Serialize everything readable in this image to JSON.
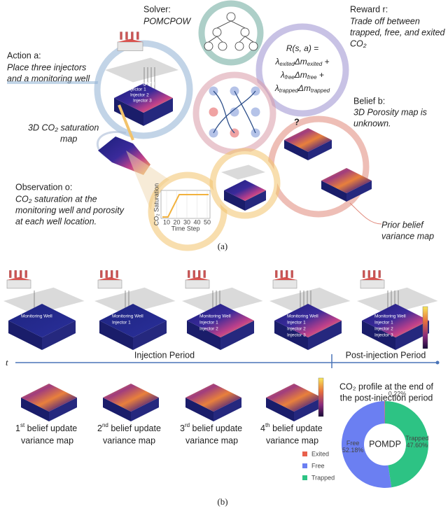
{
  "figure_a": {
    "solver": {
      "label": "Solver:",
      "name": "POMCPOW"
    },
    "reward": {
      "label": "Reward r:",
      "lines": [
        "Trade off between",
        "trapped, free, and exited",
        "CO₂"
      ]
    },
    "action": {
      "label": "Action a:",
      "lines": [
        "Place three injectors",
        "and a monitoring well"
      ]
    },
    "saturation_map": {
      "lines": [
        "3D CO₂ saturation",
        "map"
      ]
    },
    "belief": {
      "label": "Belief b:",
      "lines": [
        "3D Porosity map is",
        "unknown."
      ]
    },
    "question": "?",
    "formula": {
      "lines": [
        [
          "R(s, a) ="
        ],
        [
          "λ",
          "exited",
          "Δm",
          "exited",
          " +"
        ],
        [
          "λ",
          "free",
          "Δm",
          "free",
          " +"
        ],
        [
          "λ",
          "trapped",
          "Δm",
          "trapped"
        ]
      ]
    },
    "well_labels": [
      "Monitoring Well",
      "Injector 1",
      "Injector 2",
      "Injector 3"
    ],
    "observation": {
      "label": "Observation o:",
      "lines": [
        "CO₂ saturation at the",
        "monitoring well and porosity",
        "at each well location."
      ]
    },
    "mini_chart": {
      "xlabel": "Time Step",
      "ylabel": "CO₂ Saturation",
      "xticks": [
        10,
        20,
        30,
        40,
        50
      ]
    },
    "prior": {
      "lines": [
        "Prior belief",
        "variance map"
      ]
    },
    "caption": "(a)"
  },
  "figure_b": {
    "panels": [
      [
        "Monitoring Well"
      ],
      [
        "Monitoring Well",
        "Injector 1"
      ],
      [
        "Monitoring Well",
        "Injector 1",
        "Injector 2"
      ],
      [
        "Monitoring Well",
        "Injector 1",
        "Injector 2",
        "Injector 3"
      ],
      [
        "Monitoring Well",
        "Injector 1",
        "Injector 2",
        "Injector 3"
      ]
    ],
    "time_axis": "t",
    "injection": "Injection Period",
    "post": "Post-injection Period",
    "belief_updates": [
      {
        "ordinal": "1",
        "suffix": "st",
        "line1": " belief update",
        "line2": "variance map"
      },
      {
        "ordinal": "2",
        "suffix": "nd",
        "line1": " belief update",
        "line2": "variance map"
      },
      {
        "ordinal": "3",
        "suffix": "rd",
        "line1": " belief update",
        "line2": "variance map"
      },
      {
        "ordinal": "4",
        "suffix": "th",
        "line1": " belief update",
        "line2": "variance map"
      }
    ],
    "donut": {
      "title": [
        "CO₂ profile at the end of",
        "the post-injection period"
      ],
      "center": "POMDP",
      "slices": [
        {
          "name": "Exited",
          "value": 0.22,
          "label": "0.22%",
          "color": "#e8604c"
        },
        {
          "name": "Free",
          "value": 52.18,
          "label": "52.18%",
          "color": "#6b7ff2"
        },
        {
          "name": "Trapped",
          "value": 47.6,
          "label": "47.60%",
          "color": "#2dc384"
        }
      ]
    },
    "caption": "(b)"
  }
}
